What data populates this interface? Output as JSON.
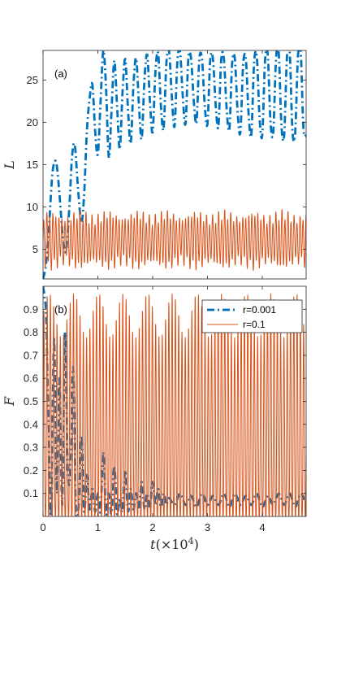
{
  "chart_data": [
    {
      "type": "line",
      "panel_label": "(a)",
      "ylabel": "L",
      "xlim": [
        0,
        4.8
      ],
      "ylim": [
        1.5,
        28.5
      ],
      "xticks": [
        0,
        1,
        2,
        3,
        4
      ],
      "yticks": [
        5,
        10,
        15,
        20,
        25
      ],
      "series": [
        {
          "name": "r=0.001",
          "color": "#0072BD",
          "style": "dash-dot",
          "x": [
            0,
            0.05,
            0.1,
            0.14,
            0.18,
            0.24,
            0.3,
            0.36,
            0.42,
            0.48,
            0.53,
            0.58,
            0.64,
            0.7,
            0.75,
            0.8,
            0.85,
            0.9,
            0.95,
            1.0,
            1.05,
            1.1,
            1.15,
            1.2,
            1.25,
            1.3,
            1.35,
            1.4,
            1.45,
            1.5,
            1.55,
            1.6,
            1.65,
            1.7,
            1.75,
            1.8,
            1.85,
            1.9,
            1.95,
            2.0,
            2.05,
            2.1,
            2.15,
            2.2,
            2.25,
            2.3,
            2.35,
            2.4,
            2.45,
            2.5,
            2.55,
            2.6,
            2.65,
            2.7,
            2.75,
            2.8,
            2.85,
            2.9,
            2.95,
            3.0,
            3.05,
            3.1,
            3.15,
            3.2,
            3.25,
            3.3,
            3.35,
            3.4,
            3.45,
            3.5,
            3.55,
            3.6,
            3.65,
            3.7,
            3.75,
            3.8,
            3.85,
            3.9,
            3.95,
            4.0,
            4.05,
            4.1,
            4.15,
            4.2,
            4.25,
            4.3,
            4.35,
            4.4,
            4.45,
            4.5,
            4.55,
            4.6,
            4.65,
            4.7,
            4.75,
            4.8
          ],
          "y": [
            1.5,
            3.0,
            6.5,
            11.0,
            14.5,
            15.3,
            11.5,
            6.5,
            4.8,
            10.0,
            16.0,
            17.3,
            12.0,
            8.2,
            11.5,
            19.0,
            22.8,
            24.5,
            19.0,
            16.2,
            22.5,
            28.5,
            24.0,
            15.8,
            21.5,
            27.3,
            22.0,
            16.8,
            23.5,
            27.5,
            21.5,
            17.5,
            24.5,
            27.6,
            22.0,
            18.0,
            25.0,
            28.0,
            22.5,
            18.8,
            26.0,
            28.2,
            22.0,
            19.2,
            27.0,
            28.4,
            23.0,
            19.5,
            27.2,
            28.3,
            23.0,
            19.8,
            27.5,
            27.6,
            22.5,
            20.0,
            27.4,
            27.5,
            22.0,
            19.8,
            27.4,
            27.5,
            22.0,
            19.5,
            27.4,
            27.5,
            21.5,
            19.2,
            27.0,
            27.5,
            21.2,
            18.8,
            26.8,
            27.5,
            21.0,
            18.5,
            27.0,
            27.8,
            20.5,
            18.5,
            27.3,
            28.0,
            20.0,
            18.8,
            27.5,
            28.2,
            19.5,
            18.5,
            27.8,
            28.4,
            19.0,
            18.7,
            27.8,
            28.5,
            19.3,
            18.5
          ]
        },
        {
          "name": "r=0.1",
          "color": "#D95319",
          "style": "solid",
          "period": 0.055,
          "mean": 6.1,
          "amplitude": 2.7
        }
      ]
    },
    {
      "type": "line",
      "panel_label": "(b)",
      "ylabel": "F",
      "xlabel": "t(×10⁴)",
      "xlim": [
        0,
        4.8
      ],
      "ylim": [
        0,
        1
      ],
      "xticks": [
        0,
        1,
        2,
        3,
        4
      ],
      "yticks": [
        0.1,
        0.2,
        0.3,
        0.4,
        0.5,
        0.6,
        0.7,
        0.8,
        0.9
      ],
      "legend_position": "top-right",
      "series": [
        {
          "name": "r=0.001",
          "color": "#0072BD",
          "style": "dash-dot",
          "x": [
            0,
            0.03,
            0.06,
            0.1,
            0.15,
            0.2,
            0.25,
            0.3,
            0.35,
            0.4,
            0.45,
            0.5,
            0.55,
            0.6,
            0.65,
            0.7,
            0.75,
            0.8,
            0.85,
            0.9,
            0.95,
            1.0,
            1.05,
            1.1,
            1.15,
            1.2,
            1.25,
            1.3,
            1.35,
            1.4,
            1.45,
            1.5,
            1.55,
            1.6,
            1.65,
            1.7,
            1.75,
            1.8,
            1.85,
            1.9,
            1.95,
            2.0,
            2.05,
            2.1,
            2.15,
            2.2,
            2.25,
            2.3,
            2.4,
            2.5,
            2.6,
            2.7,
            2.8,
            2.9,
            3.0,
            3.1,
            3.2,
            3.3,
            3.4,
            3.5,
            3.6,
            3.7,
            3.8,
            3.9,
            4.0,
            4.1,
            4.2,
            4.3,
            4.4,
            4.5,
            4.6,
            4.7,
            4.8
          ],
          "y": [
            1.0,
            0.95,
            0.85,
            0.4,
            0.0,
            0.78,
            0.1,
            0.6,
            0.05,
            0.8,
            0.2,
            0.2,
            0.65,
            0.02,
            0.05,
            0.35,
            0.02,
            0.18,
            0.03,
            0.12,
            0.02,
            0.1,
            0.02,
            0.28,
            0.01,
            0.1,
            0.01,
            0.22,
            0.01,
            0.08,
            0.02,
            0.2,
            0.02,
            0.12,
            0.03,
            0.1,
            0.04,
            0.15,
            0.03,
            0.1,
            0.04,
            0.15,
            0.05,
            0.12,
            0.04,
            0.1,
            0.05,
            0.08,
            0.05,
            0.1,
            0.05,
            0.09,
            0.04,
            0.1,
            0.05,
            0.09,
            0.05,
            0.1,
            0.04,
            0.1,
            0.05,
            0.09,
            0.05,
            0.1,
            0.04,
            0.09,
            0.05,
            0.1,
            0.05,
            0.1,
            0.04,
            0.1,
            0.05
          ]
        },
        {
          "name": "r=0.1",
          "color": "#D95319",
          "style": "solid",
          "period": 0.06,
          "min": 0.0,
          "max": 0.96
        }
      ]
    }
  ]
}
